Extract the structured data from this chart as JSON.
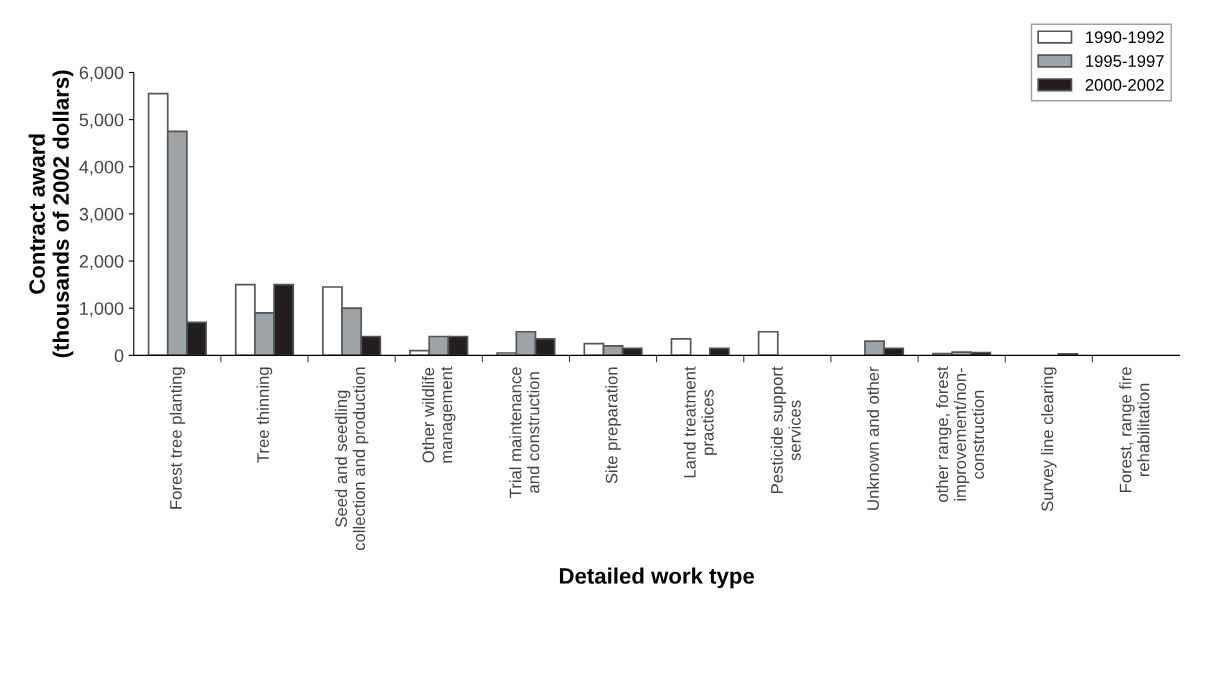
{
  "chart_data": {
    "type": "bar",
    "categories": [
      "Forest tree planting",
      "Tree thinning",
      "Seed and seedling\ncollection and production",
      "Other wildlife\nmanagement",
      "Trial maintenance\nand construction",
      "Site preparation",
      "Land treatment\npractices",
      "Pesticide support\nservices",
      "Unknown and other",
      "other range, forest\nimprovement/non-\nconstruction",
      "Survey line clearing",
      "Forest, range fire\nrehabilitation"
    ],
    "series": [
      {
        "name": "1990-1992",
        "color": "#ffffff",
        "values": [
          5550,
          1500,
          1450,
          100,
          50,
          250,
          350,
          500,
          null,
          40,
          null,
          null
        ]
      },
      {
        "name": "1995-1997",
        "color": "#a0a3a6",
        "values": [
          4750,
          900,
          1000,
          400,
          500,
          200,
          null,
          null,
          300,
          70,
          null,
          null
        ]
      },
      {
        "name": "2000-2002",
        "color": "#231f20",
        "values": [
          700,
          1500,
          400,
          400,
          350,
          150,
          150,
          null,
          150,
          60,
          30,
          null
        ]
      }
    ],
    "xlabel": "Detailed work type",
    "ylabel": "Contract award\n(thousands of 2002 dollars)",
    "ylim": [
      0,
      6000
    ],
    "yticks": [
      {
        "value": 0,
        "label": "0"
      },
      {
        "value": 1000,
        "label": "1,000"
      },
      {
        "value": 2000,
        "label": "2,000"
      },
      {
        "value": 3000,
        "label": "3,000"
      },
      {
        "value": 4000,
        "label": "4,000"
      },
      {
        "value": 5000,
        "label": "5,000"
      },
      {
        "value": 6000,
        "label": "6,000"
      }
    ],
    "grid": false,
    "legend": "top right"
  }
}
